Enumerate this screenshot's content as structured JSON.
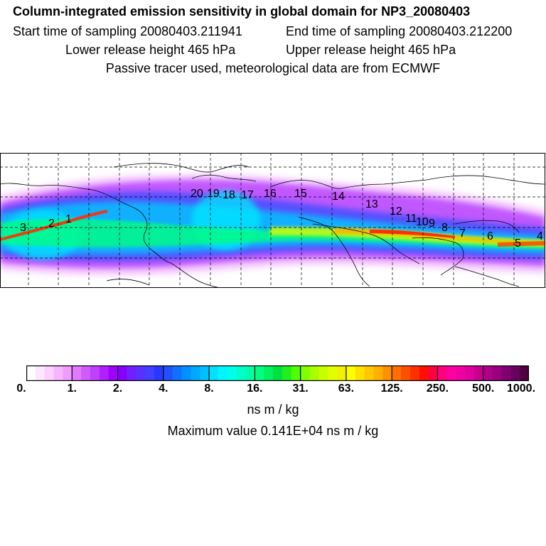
{
  "header": {
    "title": "Column-integrated emission sensitivity in global domain for NP3_20080403",
    "start_time": "Start time of sampling 20080403.211941",
    "end_time": "End time of sampling 20080403.212200",
    "lower_release": "Lower release height  465 hPa",
    "upper_release": "Upper release height  465 hPa",
    "tracer_note": "Passive tracer used, meteorological data are from ECMWF"
  },
  "map": {
    "trajectory_labels": [
      "1",
      "2",
      "3",
      "4",
      "5",
      "6",
      "7",
      "8",
      "9",
      "10",
      "11",
      "12",
      "13",
      "14",
      "15",
      "16",
      "17",
      "18",
      "19",
      "20"
    ],
    "plume_colors": [
      "#ff7bff",
      "#a020ff",
      "#4a40ff",
      "#00a0ff",
      "#00ffd0",
      "#00ff40",
      "#d0ff00",
      "#ffb000",
      "#ff2000"
    ]
  },
  "colorbar": {
    "tick_labels": [
      "0.",
      "1.",
      "2.",
      "4.",
      "8.",
      "16.",
      "31.",
      "63.",
      "125.",
      "250.",
      "500.",
      "1000."
    ],
    "colors": [
      "#ffffff",
      "#fde6ff",
      "#fbd0ff",
      "#f6b6ff",
      "#f09cff",
      "#e07bff",
      "#d05cff",
      "#c040ff",
      "#b020ff",
      "#a000ff",
      "#8a00ff",
      "#7020ff",
      "#5a30ff",
      "#4040ff",
      "#2a38ff",
      "#2050ff",
      "#1070ff",
      "#0090ff",
      "#00a8ff",
      "#00c0ff",
      "#00e0ff",
      "#00f5ff",
      "#00ffe8",
      "#00ffc8",
      "#00ffa8",
      "#00ff80",
      "#00f060",
      "#00e040",
      "#20f020",
      "#50ff00",
      "#80ff00",
      "#a8ff00",
      "#c8ff00",
      "#e0ff00",
      "#f0f000",
      "#ffff00",
      "#ffe000",
      "#ffc800",
      "#ffb000",
      "#ff9000",
      "#ff7000",
      "#ff5000",
      "#ff3000",
      "#ff1000",
      "#ff0040",
      "#ff0080",
      "#ff00a0",
      "#f000a0",
      "#e000a0",
      "#c80090",
      "#b00088",
      "#980080",
      "#800070",
      "#680060",
      "#500040"
    ],
    "units": "ns m / kg",
    "maximum": "Maximum value  0.141E+04 ns m / kg"
  }
}
